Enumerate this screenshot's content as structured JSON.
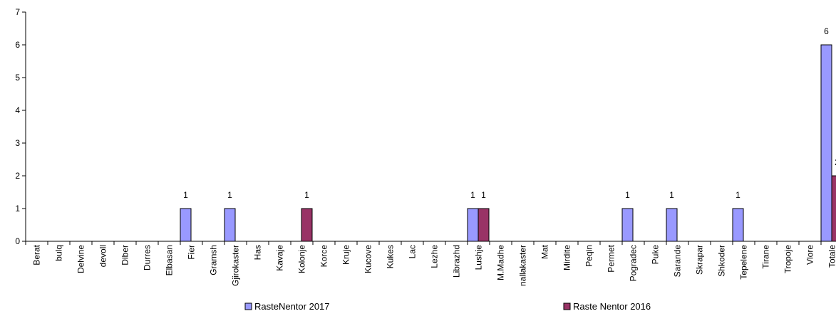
{
  "chart_data": {
    "type": "bar",
    "categories": [
      "Berat",
      "bulq",
      "Delvine",
      "devoll",
      "Diber",
      "Durres",
      "Elbasan",
      "Fier",
      "Gramsh",
      "Gjirokaster",
      "Has",
      "Kavaje",
      "Kolonje",
      "Korce",
      "Kruje",
      "Kucove",
      "Kukes",
      "Lac",
      "Lezhe",
      "Librazhd",
      "Lushje",
      "M.Madhe",
      "nallakaster",
      "Mat",
      "Mirdite",
      "Peqin",
      "Permet",
      "Pogradec",
      "Puke",
      "Sarande",
      "Skrapar",
      "Shkoder",
      "Tepelene",
      "Tirane",
      "Tropoje",
      "Vlore",
      "Totale"
    ],
    "series": [
      {
        "name": "RasteNentor 2017",
        "color": "#9999ff",
        "values": [
          0,
          0,
          0,
          0,
          0,
          0,
          0,
          1,
          0,
          1,
          0,
          0,
          0,
          0,
          0,
          0,
          0,
          0,
          0,
          0,
          1,
          0,
          0,
          0,
          0,
          0,
          0,
          1,
          0,
          1,
          0,
          0,
          1,
          0,
          0,
          0,
          6
        ]
      },
      {
        "name": "Raste Nentor 2016",
        "color": "#993366",
        "values": [
          0,
          0,
          0,
          0,
          0,
          0,
          0,
          0,
          0,
          0,
          0,
          0,
          1,
          0,
          0,
          0,
          0,
          0,
          0,
          0,
          1,
          0,
          0,
          0,
          0,
          0,
          0,
          0,
          0,
          0,
          0,
          0,
          0,
          0,
          0,
          0,
          2
        ]
      }
    ],
    "ylim": [
      0,
      7
    ],
    "yticks": [
      0,
      1,
      2,
      3,
      4,
      5,
      6,
      7
    ],
    "title": "",
    "xlabel": "",
    "ylabel": "",
    "grid": false,
    "legend_position": "bottom"
  }
}
